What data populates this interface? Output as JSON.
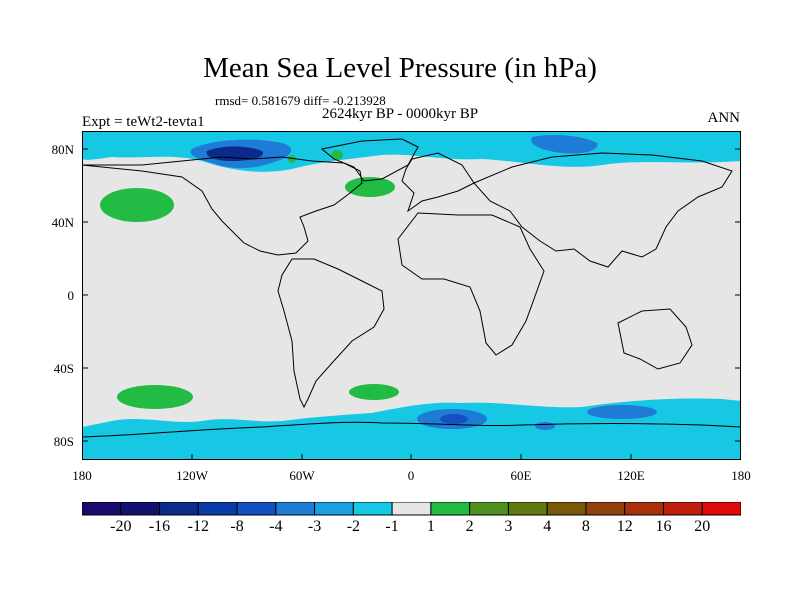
{
  "title": "Mean Sea Level Pressure (in hPa)",
  "stats": "rmsd= 0.581679 diff= -0.213928",
  "period": "2624kyr BP - 0000kyr BP",
  "experiment": "Expt = teWt2-tevta1",
  "season": "ANN",
  "map": {
    "ocean_color": "#e6e6e6",
    "coast_color": "#000000",
    "lat_labels": [
      "80N",
      "40N",
      "0",
      "40S",
      "80S"
    ],
    "lon_labels": [
      "180",
      "120W",
      "60W",
      "0",
      "60E",
      "120E",
      "180"
    ]
  },
  "colorbar": {
    "colors": [
      "#1a0a6e",
      "#12126e",
      "#0b2a8a",
      "#0a3ca8",
      "#1550c0",
      "#1e7bd6",
      "#19a0de",
      "#16c8e4",
      "#e6e6e6",
      "#22bb44",
      "#4f9020",
      "#5e7a10",
      "#7a5a08",
      "#8f420c",
      "#a8300c",
      "#c01e0c",
      "#e00a0a"
    ],
    "tick_labels": [
      "-20",
      "-16",
      "-12",
      "-8",
      "-4",
      "-3",
      "-2",
      "-1",
      "1",
      "2",
      "3",
      "4",
      "8",
      "12",
      "16",
      "20"
    ]
  }
}
